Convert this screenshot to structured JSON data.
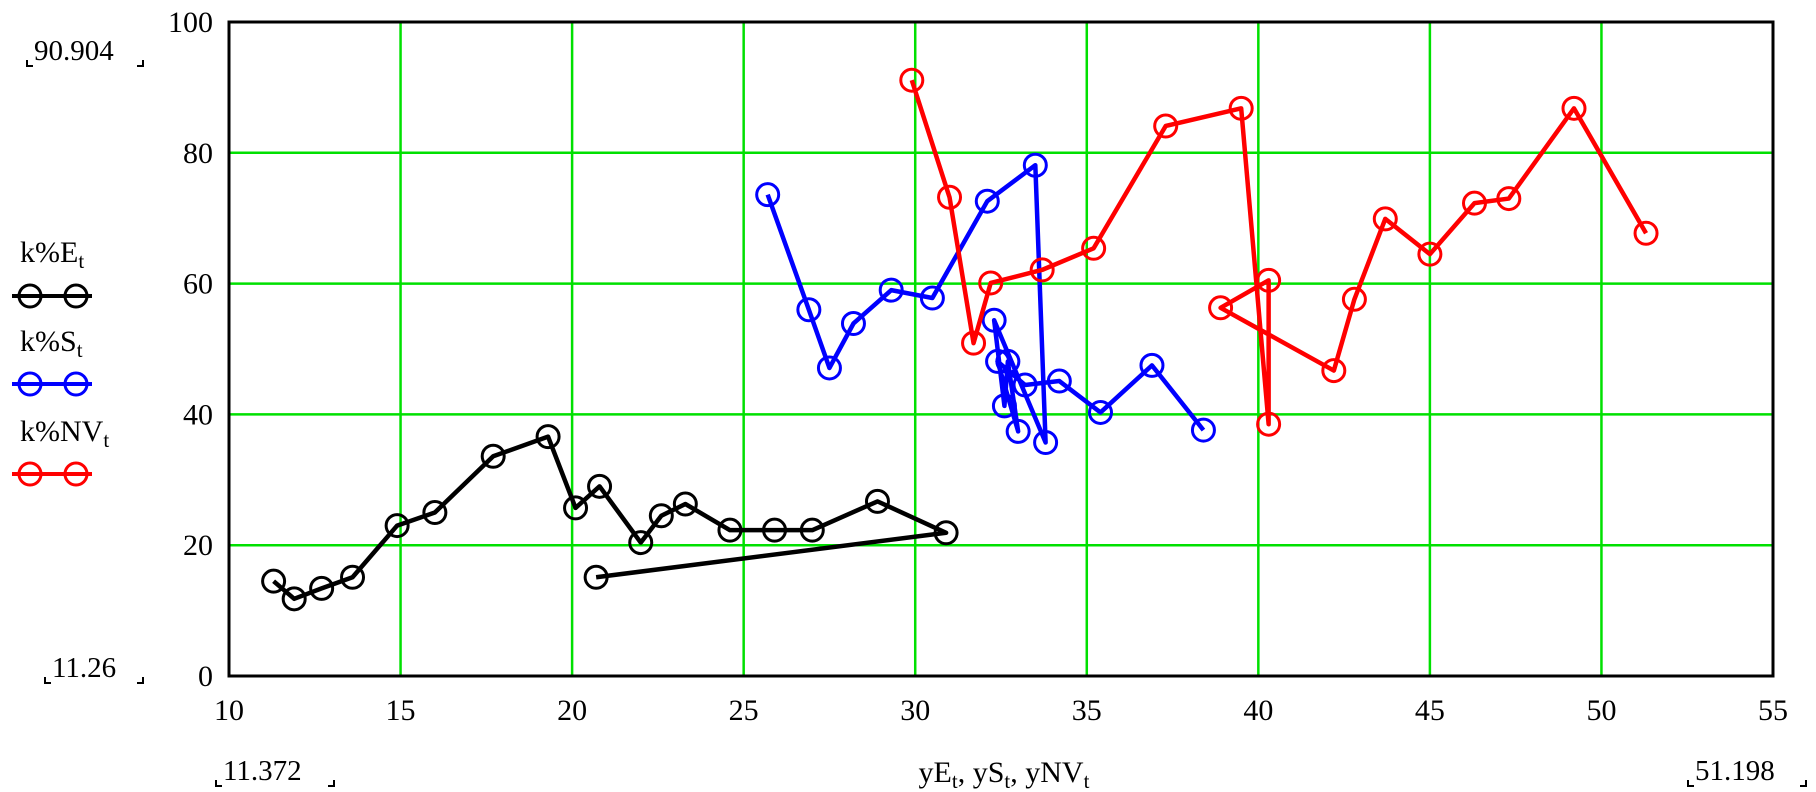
{
  "chart_data": {
    "type": "line",
    "title": "",
    "xlabel_parts": [
      {
        "base": "yE",
        "sub": "t",
        "sep": ", "
      },
      {
        "base": "yS",
        "sub": "t",
        "sep": ", "
      },
      {
        "base": "yNV",
        "sub": "t",
        "sep": ""
      }
    ],
    "xlim": [
      10,
      55
    ],
    "ylim": [
      0,
      100
    ],
    "x_ticks": [
      "10",
      "15",
      "20",
      "25",
      "30",
      "35",
      "40",
      "45",
      "50",
      "55"
    ],
    "y_ticks": [
      "0",
      "20",
      "40",
      "60",
      "80",
      "100"
    ],
    "grid": true,
    "grid_color": "#00e000",
    "side_labels": {
      "y_top": "90.904",
      "y_bottom": "11.26",
      "x_left": "11.372",
      "x_right": "51.198"
    },
    "legend_position": "left",
    "series": [
      {
        "base": "k%E",
        "sub": "t",
        "color": "#000000",
        "points": [
          [
            11.3,
            14.5
          ],
          [
            11.9,
            11.8
          ],
          [
            12.7,
            13.4
          ],
          [
            13.6,
            15.1
          ],
          [
            14.9,
            23.0
          ],
          [
            16.0,
            25.0
          ],
          [
            17.7,
            33.6
          ],
          [
            19.3,
            36.6
          ],
          [
            20.1,
            25.7
          ],
          [
            20.8,
            29.0
          ],
          [
            22.0,
            20.4
          ],
          [
            22.6,
            24.5
          ],
          [
            23.3,
            26.3
          ],
          [
            24.6,
            22.3
          ],
          [
            25.9,
            22.3
          ],
          [
            27.0,
            22.3
          ],
          [
            28.9,
            26.7
          ],
          [
            30.9,
            21.9
          ],
          [
            20.7,
            15.1
          ]
        ]
      },
      {
        "base": "k%S",
        "sub": "t",
        "color": "#0000ff",
        "points": [
          [
            25.7,
            73.6
          ],
          [
            26.9,
            56.0
          ],
          [
            27.5,
            47.1
          ],
          [
            28.2,
            53.9
          ],
          [
            29.3,
            59.0
          ],
          [
            30.5,
            57.8
          ],
          [
            32.1,
            72.6
          ],
          [
            33.5,
            78.1
          ],
          [
            33.8,
            35.7
          ],
          [
            32.3,
            54.4
          ],
          [
            32.6,
            41.3
          ],
          [
            32.7,
            48.1
          ],
          [
            33.0,
            37.4
          ],
          [
            32.4,
            48.1
          ],
          [
            33.2,
            44.5
          ],
          [
            34.2,
            45.1
          ],
          [
            35.4,
            40.3
          ],
          [
            36.9,
            47.5
          ],
          [
            38.4,
            37.6
          ]
        ]
      },
      {
        "base": "k%NV",
        "sub": "t",
        "color": "#ff0000",
        "points": [
          [
            29.9,
            91.1
          ],
          [
            31.0,
            73.2
          ],
          [
            31.7,
            50.9
          ],
          [
            32.2,
            60.1
          ],
          [
            33.7,
            62.1
          ],
          [
            35.2,
            65.4
          ],
          [
            37.3,
            84.1
          ],
          [
            39.5,
            86.8
          ],
          [
            40.3,
            38.5
          ],
          [
            40.3,
            60.5
          ],
          [
            38.9,
            56.3
          ],
          [
            42.2,
            46.7
          ],
          [
            42.8,
            57.6
          ],
          [
            43.7,
            69.9
          ],
          [
            45.0,
            64.5
          ],
          [
            46.3,
            72.3
          ],
          [
            47.3,
            73.0
          ],
          [
            49.2,
            86.8
          ],
          [
            51.3,
            67.7
          ]
        ]
      }
    ]
  }
}
